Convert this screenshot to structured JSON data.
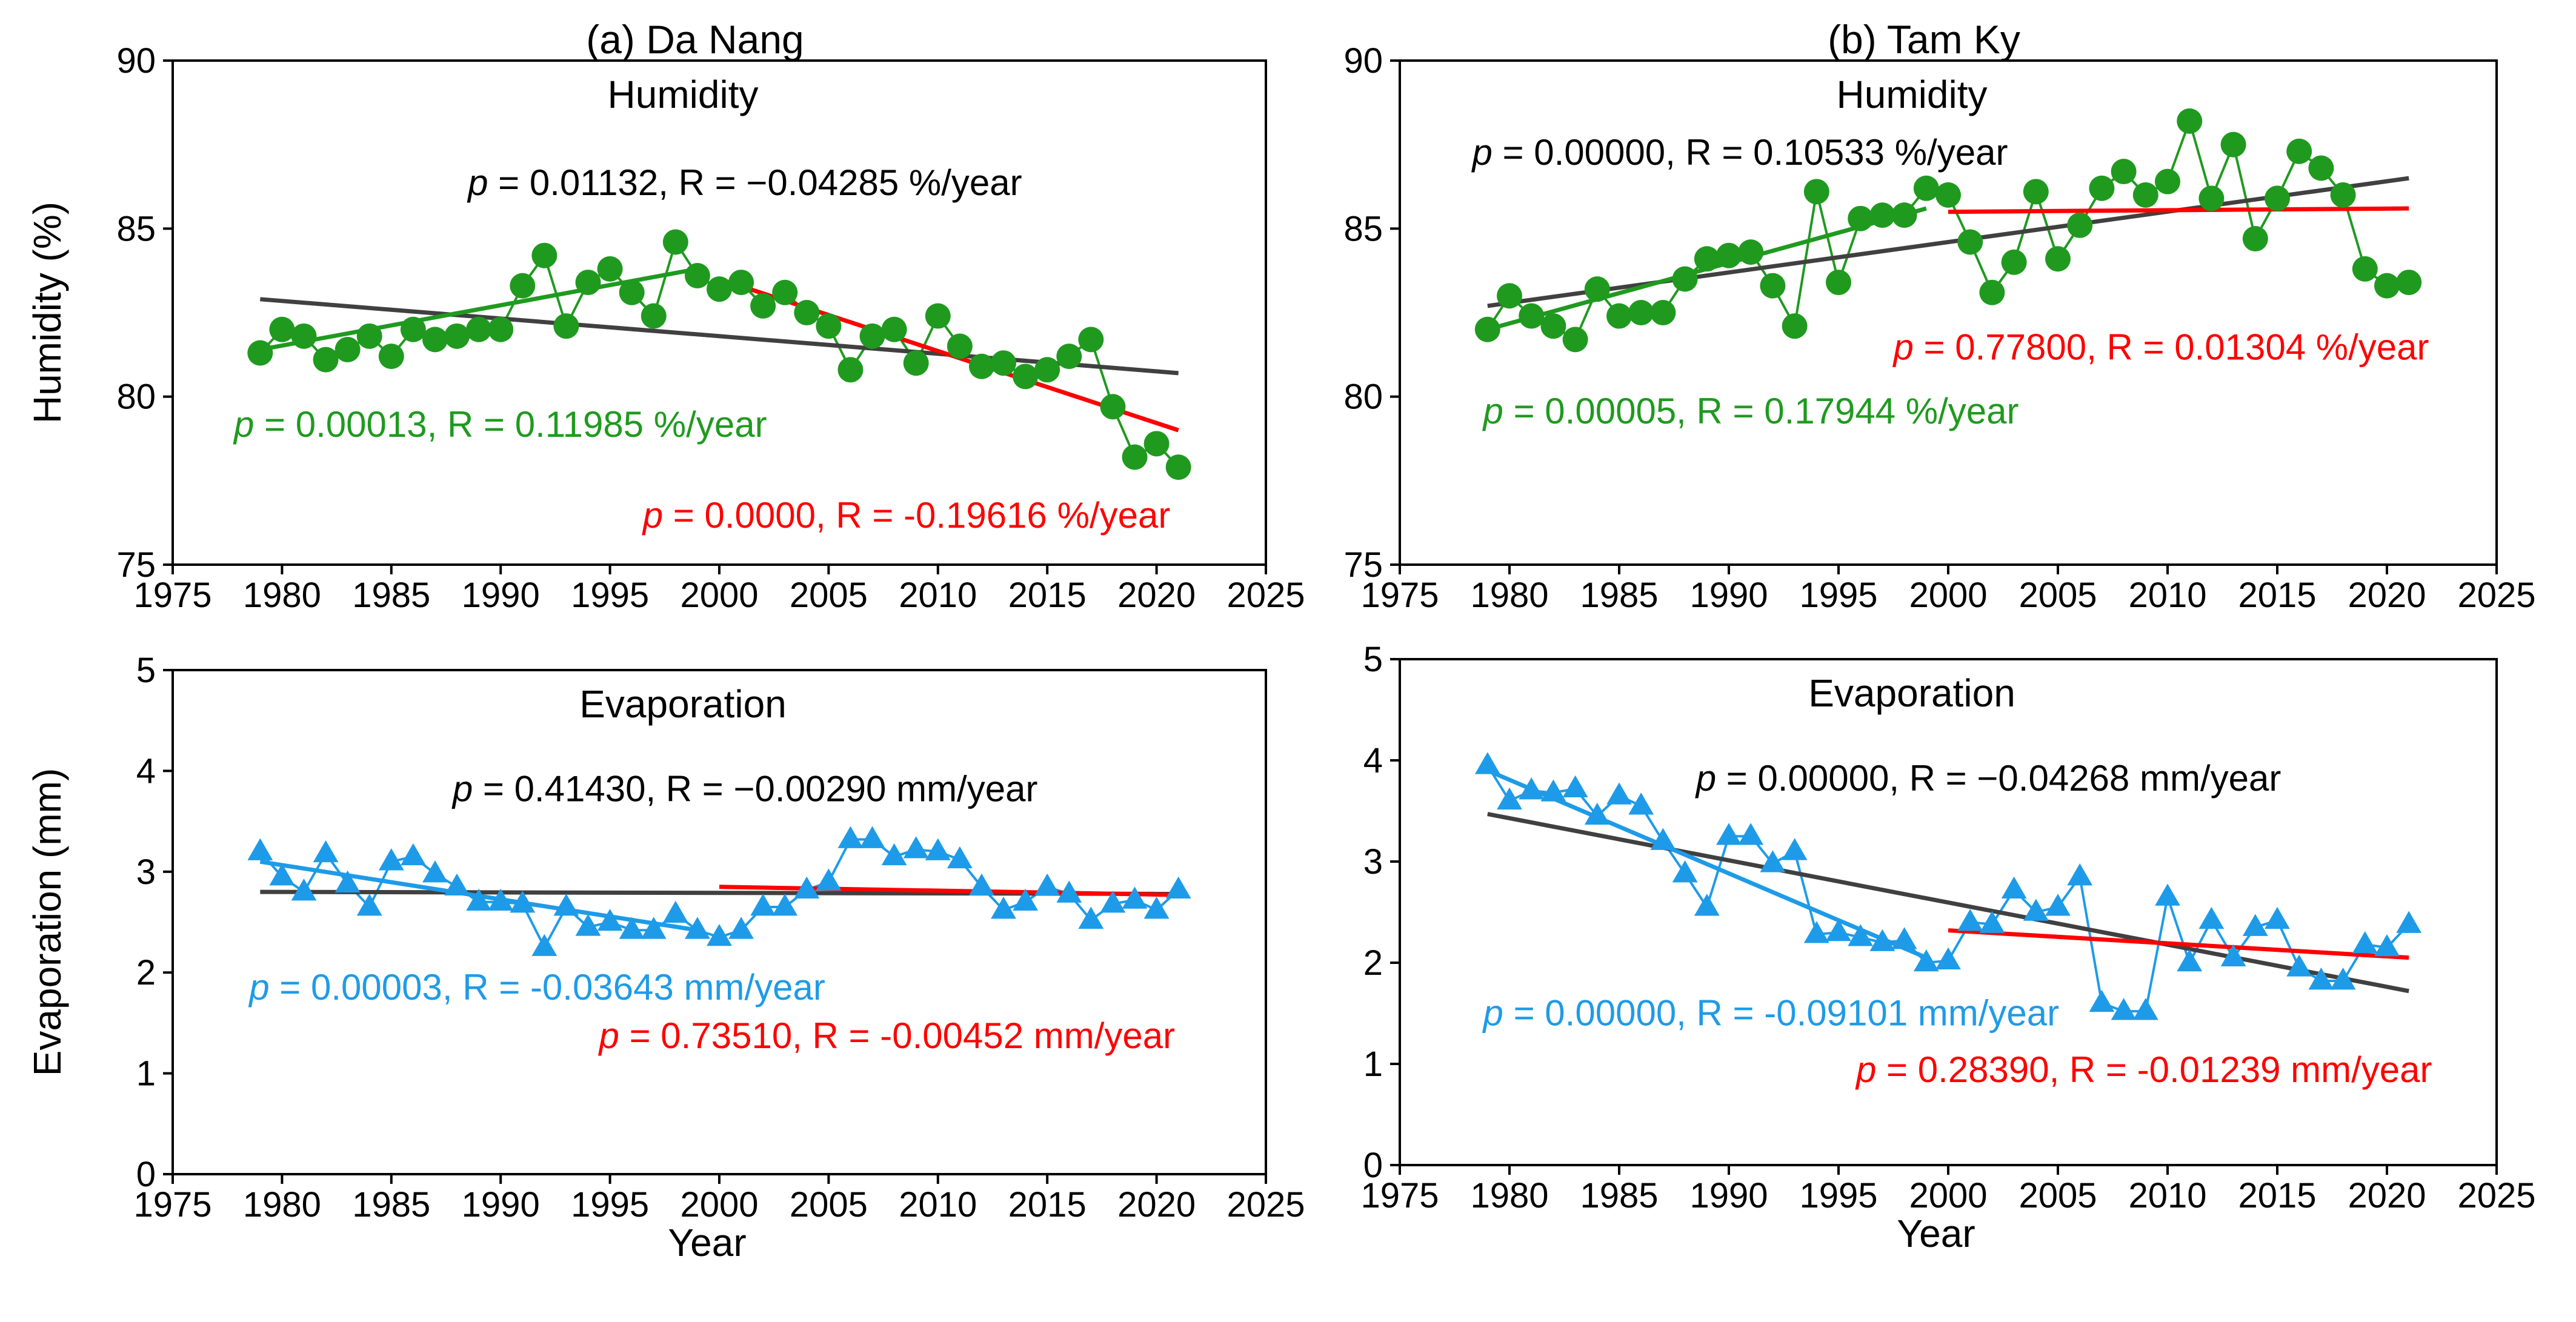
{
  "chart_data": [
    {
      "type": "line",
      "panel": "a",
      "title": "(a) Da Nang",
      "subtitle": "Humidity",
      "xlabel": "",
      "ylabel": "Humidity (%)",
      "xlim": [
        1975,
        2025
      ],
      "ylim": [
        75,
        90
      ],
      "xticks": [
        1975,
        1980,
        1985,
        1990,
        1995,
        2000,
        2005,
        2010,
        2015,
        2020,
        2025
      ],
      "yticks": [
        75,
        80,
        85,
        90
      ],
      "series": [
        {
          "name": "Humidity",
          "color": "#1f9a1f",
          "marker": "circle",
          "x": [
            1979,
            1980,
            1981,
            1982,
            1983,
            1984,
            1985,
            1986,
            1987,
            1988,
            1989,
            1990,
            1991,
            1992,
            1993,
            1994,
            1995,
            1996,
            1997,
            1998,
            1999,
            2000,
            2001,
            2002,
            2003,
            2004,
            2005,
            2006,
            2007,
            2008,
            2009,
            2010,
            2011,
            2012,
            2013,
            2014,
            2015,
            2016,
            2017,
            2018,
            2019,
            2020,
            2021
          ],
          "y": [
            81.3,
            82.0,
            81.8,
            81.1,
            81.4,
            81.8,
            81.2,
            82.0,
            81.7,
            81.8,
            82.0,
            82.0,
            83.3,
            84.2,
            82.1,
            83.4,
            83.8,
            83.1,
            82.4,
            84.6,
            83.6,
            83.2,
            83.4,
            82.7,
            83.1,
            82.5,
            82.1,
            80.8,
            81.8,
            82.0,
            81.0,
            82.4,
            81.5,
            80.9,
            81.0,
            80.6,
            80.8,
            81.2,
            81.7,
            79.7,
            78.2,
            78.6,
            77.9
          ]
        }
      ],
      "trend_lines": [
        {
          "name": "trend-overall",
          "color": "#404040",
          "x": [
            1979,
            2021
          ],
          "y": [
            82.9,
            80.7
          ]
        },
        {
          "name": "trend-1979-1999",
          "color": "#1f9a1f",
          "x": [
            1979,
            1999
          ],
          "y": [
            81.4,
            83.8
          ]
        },
        {
          "name": "trend-2000-2021",
          "color": "#ff0000",
          "x": [
            2000,
            2021
          ],
          "y": [
            83.5,
            79.0
          ]
        }
      ],
      "annotations": [
        {
          "name": "annot-overall",
          "color": "#000000",
          "italic": "p",
          "text": " = 0.01132, R = −0.04285 %/year",
          "anchor": [
            1988.5,
            86.0
          ]
        },
        {
          "name": "annot-early",
          "color": "#1f9a1f",
          "italic": "p",
          "text": " = 0.00013, R = 0.11985 %/year",
          "anchor": [
            1977.8,
            78.8
          ]
        },
        {
          "name": "annot-late",
          "color": "#ff0000",
          "italic": "p",
          "text": " = 0.0000, R = -0.19616 %/year",
          "anchor": [
            1996.5,
            76.1
          ]
        }
      ]
    },
    {
      "type": "line",
      "panel": "b",
      "title": "(b) Tam Ky",
      "subtitle": "Humidity",
      "xlabel": "",
      "ylabel": "",
      "xlim": [
        1975,
        2025
      ],
      "ylim": [
        75,
        90
      ],
      "xticks": [
        1975,
        1980,
        1985,
        1990,
        1995,
        2000,
        2005,
        2010,
        2015,
        2020,
        2025
      ],
      "yticks": [
        75,
        80,
        85,
        90
      ],
      "series": [
        {
          "name": "Humidity",
          "color": "#1f9a1f",
          "marker": "circle",
          "x": [
            1979,
            1980,
            1981,
            1982,
            1983,
            1984,
            1985,
            1986,
            1987,
            1988,
            1989,
            1990,
            1991,
            1992,
            1993,
            1994,
            1995,
            1996,
            1997,
            1998,
            1999,
            2000,
            2001,
            2002,
            2003,
            2004,
            2005,
            2006,
            2007,
            2008,
            2009,
            2010,
            2011,
            2012,
            2013,
            2014,
            2015,
            2016,
            2017,
            2018,
            2019,
            2020,
            2021
          ],
          "y": [
            82.0,
            83.0,
            82.4,
            82.1,
            81.7,
            83.2,
            82.4,
            82.5,
            82.5,
            83.5,
            84.1,
            84.2,
            84.3,
            83.3,
            82.1,
            86.1,
            83.4,
            85.3,
            85.4,
            85.4,
            86.2,
            86.0,
            84.6,
            83.1,
            84.0,
            86.1,
            84.1,
            85.1,
            86.2,
            86.7,
            86.0,
            86.4,
            88.2,
            85.9,
            87.5,
            84.7,
            85.9,
            87.3,
            86.8,
            86.0,
            83.8,
            83.3,
            83.4
          ]
        }
      ],
      "trend_lines": [
        {
          "name": "trend-overall",
          "color": "#404040",
          "x": [
            1979,
            2021
          ],
          "y": [
            82.7,
            86.5
          ]
        },
        {
          "name": "trend-1979-1999",
          "color": "#1f9a1f",
          "x": [
            1979,
            1999
          ],
          "y": [
            82.0,
            85.6
          ]
        },
        {
          "name": "trend-2000-2021",
          "color": "#ff0000",
          "x": [
            2000,
            2021
          ],
          "y": [
            85.5,
            85.6
          ]
        }
      ],
      "annotations": [
        {
          "name": "annot-overall",
          "color": "#000000",
          "italic": "p",
          "text": " = 0.00000, R = 0.10533 %/year",
          "anchor": [
            1978.3,
            86.9
          ]
        },
        {
          "name": "annot-early",
          "color": "#1f9a1f",
          "italic": "p",
          "text": " = 0.00005, R = 0.17944 %/year",
          "anchor": [
            1978.8,
            79.2
          ]
        },
        {
          "name": "annot-late",
          "color": "#ff0000",
          "italic": "p",
          "text": " = 0.77800, R = 0.01304 %/year",
          "anchor": [
            1997.5,
            81.1
          ]
        }
      ]
    },
    {
      "type": "line",
      "panel": "a",
      "title": "",
      "subtitle": "Evaporation",
      "xlabel": "Year",
      "ylabel": "Evaporation (mm)",
      "xlim": [
        1975,
        2025
      ],
      "ylim": [
        0,
        5
      ],
      "xticks": [
        1975,
        1980,
        1985,
        1990,
        1995,
        2000,
        2005,
        2010,
        2015,
        2020,
        2025
      ],
      "yticks": [
        0,
        1,
        2,
        3,
        4,
        5
      ],
      "series": [
        {
          "name": "Evaporation",
          "color": "#1e9be8",
          "marker": "triangle",
          "x": [
            1979,
            1980,
            1981,
            1982,
            1983,
            1984,
            1985,
            1986,
            1987,
            1988,
            1989,
            1990,
            1991,
            1992,
            1993,
            1994,
            1995,
            1996,
            1997,
            1998,
            1999,
            2000,
            2001,
            2002,
            2003,
            2004,
            2005,
            2006,
            2007,
            2008,
            2009,
            2010,
            2011,
            2012,
            2013,
            2014,
            2015,
            2016,
            2017,
            2018,
            2019,
            2020,
            2021
          ],
          "y": [
            3.2,
            2.95,
            2.8,
            3.18,
            2.88,
            2.65,
            3.1,
            3.15,
            2.98,
            2.85,
            2.7,
            2.7,
            2.68,
            2.25,
            2.65,
            2.45,
            2.5,
            2.42,
            2.42,
            2.58,
            2.42,
            2.35,
            2.42,
            2.65,
            2.65,
            2.82,
            2.9,
            3.32,
            3.32,
            3.15,
            3.22,
            3.2,
            3.12,
            2.85,
            2.62,
            2.7,
            2.85,
            2.78,
            2.52,
            2.68,
            2.72,
            2.62,
            2.82
          ]
        }
      ],
      "trend_lines": [
        {
          "name": "trend-overall",
          "color": "#404040",
          "x": [
            1979,
            2021
          ],
          "y": [
            2.8,
            2.78
          ]
        },
        {
          "name": "trend-1979-1999",
          "color": "#1e9be8",
          "x": [
            1979,
            1999
          ],
          "y": [
            3.1,
            2.42
          ]
        },
        {
          "name": "trend-2000-2021",
          "color": "#ff0000",
          "x": [
            2000,
            2021
          ],
          "y": [
            2.85,
            2.77
          ]
        }
      ],
      "annotations": [
        {
          "name": "annot-overall",
          "color": "#000000",
          "italic": "p",
          "text": " = 0.41430, R = −0.00290 mm/year",
          "anchor": [
            1987.8,
            3.7
          ]
        },
        {
          "name": "annot-early",
          "color": "#1e9be8",
          "italic": "p",
          "text": " = 0.00003, R = -0.03643 mm/year",
          "anchor": [
            1978.5,
            1.73
          ]
        },
        {
          "name": "annot-late",
          "color": "#ff0000",
          "italic": "p",
          "text": " = 0.73510, R = -0.00452 mm/year",
          "anchor": [
            1994.5,
            1.25
          ]
        }
      ]
    },
    {
      "type": "line",
      "panel": "b",
      "title": "",
      "subtitle": "Evaporation",
      "xlabel": "Year",
      "ylabel": "",
      "xlim": [
        1975,
        2025
      ],
      "ylim": [
        0,
        5
      ],
      "xticks": [
        1975,
        1980,
        1985,
        1990,
        1995,
        2000,
        2005,
        2010,
        2015,
        2020,
        2025
      ],
      "yticks": [
        0,
        1,
        2,
        3,
        4,
        5
      ],
      "series": [
        {
          "name": "Evaporation",
          "color": "#1e9be8",
          "marker": "triangle",
          "x": [
            1979,
            1980,
            1981,
            1982,
            1983,
            1984,
            1985,
            1986,
            1987,
            1988,
            1989,
            1990,
            1991,
            1992,
            1993,
            1994,
            1995,
            1996,
            1997,
            1998,
            1999,
            2000,
            2001,
            2002,
            2003,
            2004,
            2005,
            2006,
            2007,
            2008,
            2009,
            2010,
            2011,
            2012,
            2013,
            2014,
            2015,
            2016,
            2017,
            2018,
            2019,
            2020,
            2021
          ],
          "y": [
            3.95,
            3.6,
            3.7,
            3.68,
            3.72,
            3.45,
            3.65,
            3.55,
            3.2,
            2.88,
            2.55,
            3.25,
            3.25,
            2.98,
            3.1,
            2.28,
            2.3,
            2.25,
            2.2,
            2.22,
            2.0,
            2.02,
            2.4,
            2.38,
            2.72,
            2.5,
            2.55,
            2.85,
            1.6,
            1.52,
            1.52,
            2.65,
            2.0,
            2.42,
            2.05,
            2.35,
            2.42,
            1.95,
            1.82,
            1.82,
            2.18,
            2.15,
            2.38
          ]
        }
      ],
      "trend_lines": [
        {
          "name": "trend-overall",
          "color": "#404040",
          "x": [
            1979,
            2021
          ],
          "y": [
            3.47,
            1.72
          ]
        },
        {
          "name": "trend-1979-1999",
          "color": "#1e9be8",
          "x": [
            1979,
            1999
          ],
          "y": [
            3.9,
            2.05
          ]
        },
        {
          "name": "trend-2000-2021",
          "color": "#ff0000",
          "x": [
            2000,
            2021
          ],
          "y": [
            2.32,
            2.05
          ]
        }
      ],
      "annotations": [
        {
          "name": "annot-overall",
          "color": "#000000",
          "italic": "p",
          "text": " = 0.00000, R = −0.04268 mm/year",
          "anchor": [
            1988.5,
            3.7
          ]
        },
        {
          "name": "annot-early",
          "color": "#1e9be8",
          "italic": "p",
          "text": " = 0.00000, R = -0.09101 mm/year",
          "anchor": [
            1978.8,
            1.38
          ]
        },
        {
          "name": "annot-late",
          "color": "#ff0000",
          "italic": "p",
          "text": " = 0.28390, R = -0.01239 mm/year",
          "anchor": [
            1995.8,
            0.82
          ]
        }
      ]
    }
  ]
}
